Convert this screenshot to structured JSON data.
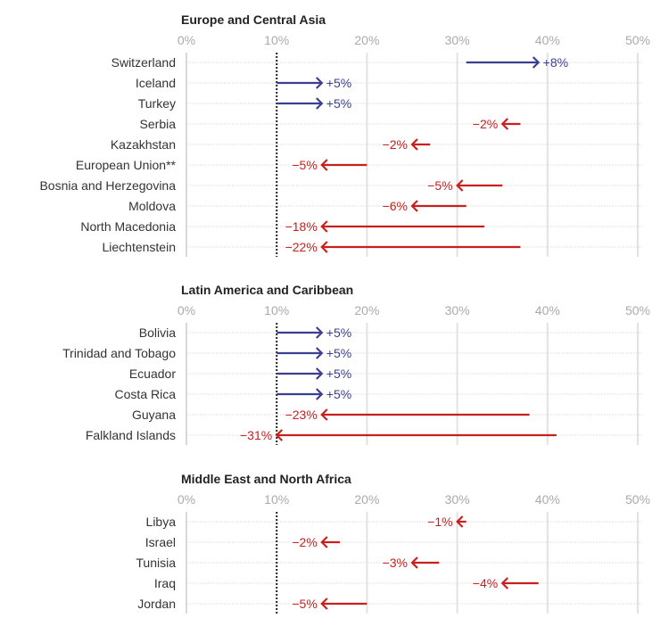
{
  "colors": {
    "increase": "#3b3f8f",
    "decrease": "#c8201e",
    "grid": "#e2e2e2",
    "axis": "#cccccc",
    "reference": "#222222"
  },
  "chart_data": [
    {
      "type": "arrow",
      "title": "Europe and Central Asia",
      "xlim": [
        0,
        50
      ],
      "ticks": [
        "0%",
        "10%",
        "20%",
        "30%",
        "40%",
        "50%"
      ],
      "tick_values": [
        0,
        10,
        20,
        30,
        40,
        50
      ],
      "reference": 10,
      "rows": [
        {
          "name": "Switzerland",
          "from": 31,
          "to": 39,
          "label": "+8%"
        },
        {
          "name": "Iceland",
          "from": 10,
          "to": 15,
          "label": "+5%"
        },
        {
          "name": "Turkey",
          "from": 10,
          "to": 15,
          "label": "+5%"
        },
        {
          "name": "Serbia",
          "from": 37,
          "to": 35,
          "label": "−2%"
        },
        {
          "name": "Kazakhstan",
          "from": 27,
          "to": 25,
          "label": "−2%"
        },
        {
          "name": "European Union**",
          "from": 20,
          "to": 15,
          "label": "−5%"
        },
        {
          "name": "Bosnia and Herzegovina",
          "from": 35,
          "to": 30,
          "label": "−5%"
        },
        {
          "name": "Moldova",
          "from": 31,
          "to": 25,
          "label": "−6%"
        },
        {
          "name": "North Macedonia",
          "from": 33,
          "to": 15,
          "label": "−18%"
        },
        {
          "name": "Liechtenstein",
          "from": 37,
          "to": 15,
          "label": "−22%"
        }
      ]
    },
    {
      "type": "arrow",
      "title": "Latin America and Caribbean",
      "xlim": [
        0,
        50
      ],
      "ticks": [
        "0%",
        "10%",
        "20%",
        "30%",
        "40%",
        "50%"
      ],
      "tick_values": [
        0,
        10,
        20,
        30,
        40,
        50
      ],
      "reference": 10,
      "rows": [
        {
          "name": "Bolivia",
          "from": 10,
          "to": 15,
          "label": "+5%"
        },
        {
          "name": "Trinidad and Tobago",
          "from": 10,
          "to": 15,
          "label": "+5%"
        },
        {
          "name": "Ecuador",
          "from": 10,
          "to": 15,
          "label": "+5%"
        },
        {
          "name": "Costa Rica",
          "from": 10,
          "to": 15,
          "label": "+5%"
        },
        {
          "name": "Guyana",
          "from": 38,
          "to": 15,
          "label": "−23%"
        },
        {
          "name": "Falkland Islands",
          "from": 41,
          "to": 10,
          "label": "−31%"
        }
      ]
    },
    {
      "type": "arrow",
      "title": "Middle East and North Africa",
      "xlim": [
        0,
        50
      ],
      "ticks": [
        "0%",
        "10%",
        "20%",
        "30%",
        "40%",
        "50%"
      ],
      "tick_values": [
        0,
        10,
        20,
        30,
        40,
        50
      ],
      "reference": 10,
      "rows": [
        {
          "name": "Libya",
          "from": 31,
          "to": 30,
          "label": "−1%"
        },
        {
          "name": "Israel",
          "from": 17,
          "to": 15,
          "label": "−2%"
        },
        {
          "name": "Tunisia",
          "from": 28,
          "to": 25,
          "label": "−3%"
        },
        {
          "name": "Iraq",
          "from": 39,
          "to": 35,
          "label": "−4%"
        },
        {
          "name": "Jordan",
          "from": 20,
          "to": 15,
          "label": "−5%"
        }
      ]
    }
  ]
}
